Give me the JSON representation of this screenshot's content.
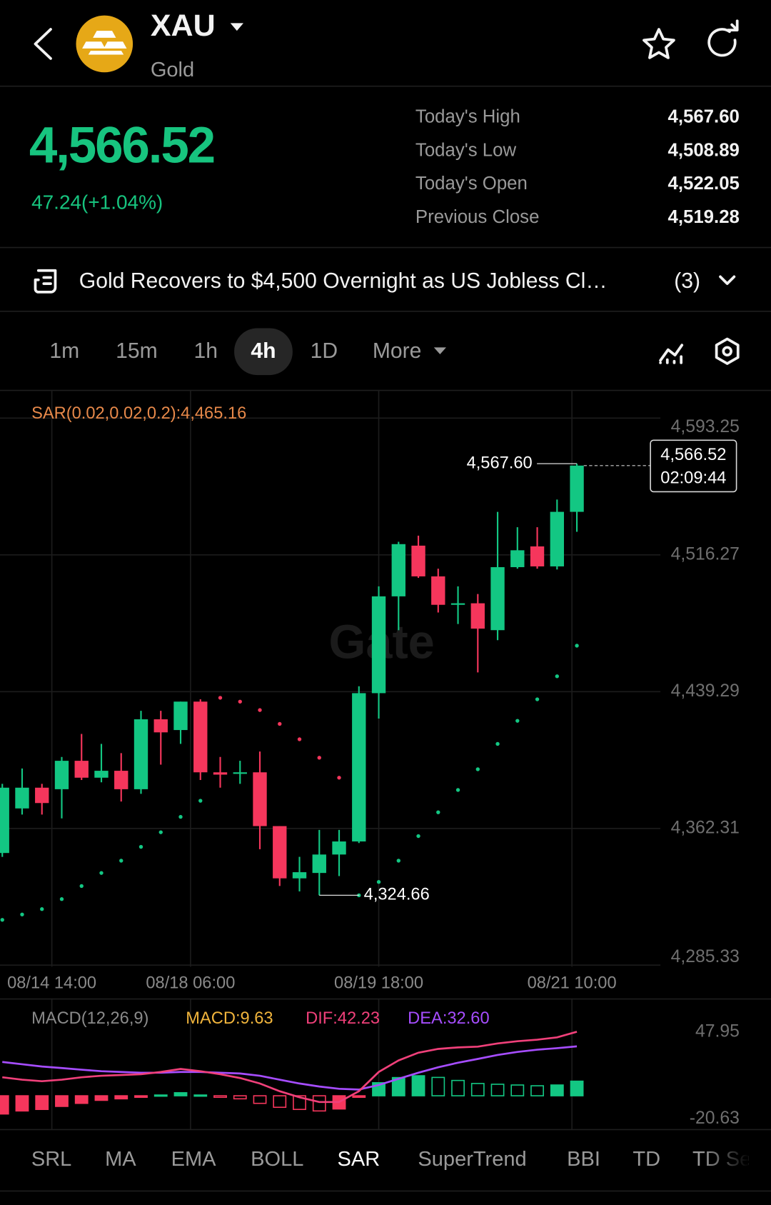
{
  "header": {
    "symbol": "XAU",
    "name": "Gold"
  },
  "quote": {
    "price": "4,566.52",
    "change": "47.24(+1.04%)",
    "stats": [
      {
        "label": "Today's High",
        "value": "4,567.60"
      },
      {
        "label": "Today's Low",
        "value": "4,508.89"
      },
      {
        "label": "Today's Open",
        "value": "4,522.05"
      },
      {
        "label": "Previous Close",
        "value": "4,519.28"
      }
    ]
  },
  "news": {
    "headline": "Gold Recovers to $4,500 Overnight as US Jobless Cl…",
    "count": "(3)"
  },
  "timeframes": [
    {
      "label": "1m"
    },
    {
      "label": "15m"
    },
    {
      "label": "1h"
    },
    {
      "label": "4h",
      "active": true
    },
    {
      "label": "1D"
    },
    {
      "label": "More"
    }
  ],
  "chart_data": {
    "type": "candlestick",
    "watermark": "Gate",
    "sar_label": "SAR(0.02,0.02,0.2):4,465.16",
    "up_color": "#13c783",
    "down_color": "#f5365c",
    "grid": true,
    "open": [
      4348.47,
      4373.55,
      4385.23,
      4384.37,
      4400.37,
      4390.85,
      4394.75,
      4384.37,
      4423.72,
      4417.67,
      4433.67,
      4393.88,
      4393.02,
      4393.88,
      4363.61,
      4334.2,
      4337.23,
      4347.61,
      4354.96,
      4438.43,
      4492.92,
      4521.46,
      4504.16,
      4488.16,
      4489.02,
      4473.89,
      4509.35,
      4521.03,
      4509.78,
      4540.49
    ],
    "high": [
      4387.39,
      4396.04,
      4387.39,
      4402.53,
      4415.5,
      4409.88,
      4404.69,
      4428.48,
      4428.48,
      4433.67,
      4434.97,
      4402.53,
      4400.37,
      4405.56,
      4363.61,
      4346.31,
      4361.45,
      4361.45,
      4442.32,
      4498.54,
      4523.62,
      4527.08,
      4508.49,
      4498.54,
      4494.21,
      4540.49,
      4531.84,
      4531.84,
      4547.41,
      4567.6
    ],
    "low": [
      4346.31,
      4370.1,
      4370.1,
      4367.93,
      4389.56,
      4388.26,
      4377.45,
      4381.77,
      4398.21,
      4409.88,
      4389.56,
      4385.23,
      4387.39,
      4350.63,
      4329.88,
      4326.85,
      4324.66,
      4335.5,
      4354.09,
      4424.15,
      4473.89,
      4503.3,
      4483.83,
      4477.35,
      4450.1,
      4468.27,
      4508.49,
      4508.49,
      4508.05,
      4529.24
    ],
    "close": [
      4385.23,
      4385.23,
      4376.58,
      4400.37,
      4390.85,
      4394.75,
      4384.37,
      4423.72,
      4416.37,
      4433.67,
      4393.88,
      4392.58,
      4393.88,
      4363.61,
      4334.2,
      4337.66,
      4347.61,
      4354.96,
      4438.43,
      4492.92,
      4522.32,
      4504.16,
      4488.16,
      4489.02,
      4474.75,
      4509.35,
      4518.86,
      4509.78,
      4540.49,
      4566.52
    ],
    "sar": [
      4310.85,
      4313.87,
      4316.9,
      4322.52,
      4329.88,
      4337.23,
      4344.15,
      4351.93,
      4360.15,
      4368.8,
      4377.88,
      4435.83,
      4433.67,
      4428.91,
      4421.13,
      4412.48,
      4402.1,
      4390.85,
      4324.66,
      4332.17,
      4344.15,
      4357.99,
      4371.39,
      4383.93,
      4395.61,
      4409.88,
      4422.86,
      4434.97,
      4447.94,
      4465.16
    ],
    "ylim": [
      4284.47,
      4608.82
    ],
    "yticks": [
      {
        "value": 4593.25,
        "label": "4,593.25"
      },
      {
        "value": 4516.27,
        "label": "4,516.27"
      },
      {
        "value": 4439.29,
        "label": "4,439.29"
      },
      {
        "value": 4362.31,
        "label": "4,362.31"
      },
      {
        "value": 4285.33,
        "label": "4,285.33"
      }
    ],
    "xticks": [
      {
        "value": 2.5,
        "label": "08/14 14:00"
      },
      {
        "value": 9.5,
        "label": "08/18 06:00"
      },
      {
        "value": 19,
        "label": "08/19 18:00"
      },
      {
        "value": 28.75,
        "label": "08/21 10:00"
      }
    ],
    "high_annotation": {
      "value": 4567.6,
      "label": "4,567.60"
    },
    "low_annotation": {
      "value": 4324.66,
      "label": "4,324.66"
    },
    "last_price": {
      "value": 4566.52,
      "label": "4,566.52",
      "countdown": "02:09:44"
    },
    "macd": {
      "title": "MACD(12,26,9)",
      "macd_label": "MACD:9.63",
      "dif_label": "DIF:42.23",
      "dea_label": "DEA:32.60",
      "macd_color": "#f0b43c",
      "dif_color": "#f0407a",
      "dea_color": "#a64dff",
      "ylim": [
        -22.3,
        61.3
      ],
      "yticks": [
        47.95,
        -20.63
      ],
      "histogram": [
        -12,
        -10,
        -9,
        -7,
        -5,
        -3,
        -2,
        -1,
        0.5,
        2,
        0.5,
        -1,
        -2,
        -5,
        -7.6,
        -9,
        -10,
        -8.7,
        -1,
        8.6,
        12,
        13.2,
        12.1,
        10.1,
        8.1,
        7.6,
        7.1,
        6.6,
        7.1,
        9.63
      ],
      "dif": [
        12.2,
        10.6,
        9.6,
        10.6,
        12.2,
        13.2,
        13.7,
        14.2,
        15.7,
        17.7,
        16.2,
        14.2,
        11.7,
        8.1,
        3.0,
        -1.0,
        -4.1,
        -4.1,
        3.0,
        15.7,
        23.3,
        28.4,
        30.9,
        31.9,
        32.4,
        34.5,
        36.0,
        37.0,
        38.5,
        42.23
      ],
      "dea": [
        22.3,
        20.8,
        19.3,
        18.3,
        17.2,
        16.2,
        15.7,
        15.2,
        15.2,
        15.7,
        15.7,
        15.2,
        14.7,
        13.2,
        10.6,
        8.1,
        6.1,
        4.6,
        4.1,
        7.1,
        11.2,
        15.2,
        18.8,
        21.8,
        24.3,
        26.9,
        28.9,
        30.4,
        31.4,
        32.6
      ]
    }
  },
  "indicator_tabs": [
    {
      "label": "SRL"
    },
    {
      "label": "MA"
    },
    {
      "label": "EMA"
    },
    {
      "label": "BOLL"
    },
    {
      "label": "SAR",
      "active": true
    },
    {
      "label": "SuperTrend"
    },
    {
      "label": "BBI"
    },
    {
      "label": "TD"
    },
    {
      "label": "TD Se"
    }
  ]
}
